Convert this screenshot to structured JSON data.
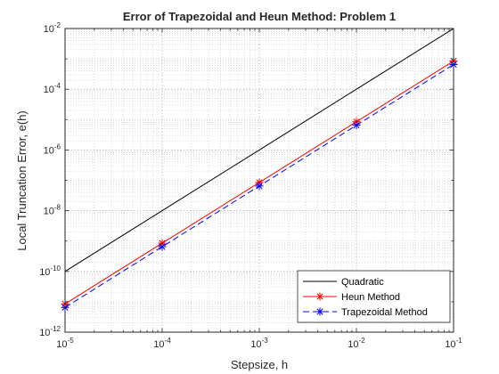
{
  "chart_data": {
    "type": "line",
    "title": "Error of Trapezoidal and Heun Method: Problem 1",
    "xlabel": "Stepsize, h",
    "ylabel": "Local Truncation Error, e(h)",
    "xscale": "log",
    "yscale": "log",
    "xlim": [
      1e-05,
      0.1
    ],
    "ylim": [
      1e-12,
      0.01
    ],
    "grid": true,
    "minor_grid": true,
    "legend_position": "bottom-right",
    "x_ticks": [
      1e-05,
      0.0001,
      0.001,
      0.01,
      0.1
    ],
    "x_tick_labels": [
      {
        "base": "10",
        "exp": "-5"
      },
      {
        "base": "10",
        "exp": "-4"
      },
      {
        "base": "10",
        "exp": "-3"
      },
      {
        "base": "10",
        "exp": "-2"
      },
      {
        "base": "10",
        "exp": "-1"
      }
    ],
    "y_ticks": [
      1e-12,
      1e-10,
      1e-08,
      1e-06,
      0.0001,
      0.01
    ],
    "y_tick_labels": [
      {
        "base": "10",
        "exp": "-12"
      },
      {
        "base": "10",
        "exp": "-10"
      },
      {
        "base": "10",
        "exp": "-8"
      },
      {
        "base": "10",
        "exp": "-6"
      },
      {
        "base": "10",
        "exp": "-4"
      },
      {
        "base": "10",
        "exp": "-2"
      }
    ],
    "series": [
      {
        "name": "Quadratic",
        "color": "#000000",
        "line_style": "solid",
        "marker": "none",
        "x": [
          1e-05,
          0.0001,
          0.001,
          0.01,
          0.1
        ],
        "y": [
          1e-10,
          1e-08,
          1e-06,
          0.0001,
          0.01
        ]
      },
      {
        "name": "Heun Method",
        "color": "#ff0000",
        "line_style": "solid",
        "marker": "asterisk",
        "x": [
          1e-05,
          0.0001,
          0.001,
          0.01,
          0.1
        ],
        "y": [
          8.5e-12,
          8.5e-10,
          8.5e-08,
          8.5e-06,
          0.00085
        ]
      },
      {
        "name": "Trapezoidal Method",
        "color": "#0000ff",
        "line_style": "dashed",
        "marker": "asterisk",
        "x": [
          1e-05,
          0.0001,
          0.001,
          0.01,
          0.1
        ],
        "y": [
          6.5e-12,
          6.5e-10,
          6.5e-08,
          6.5e-06,
          0.00065
        ]
      }
    ]
  }
}
